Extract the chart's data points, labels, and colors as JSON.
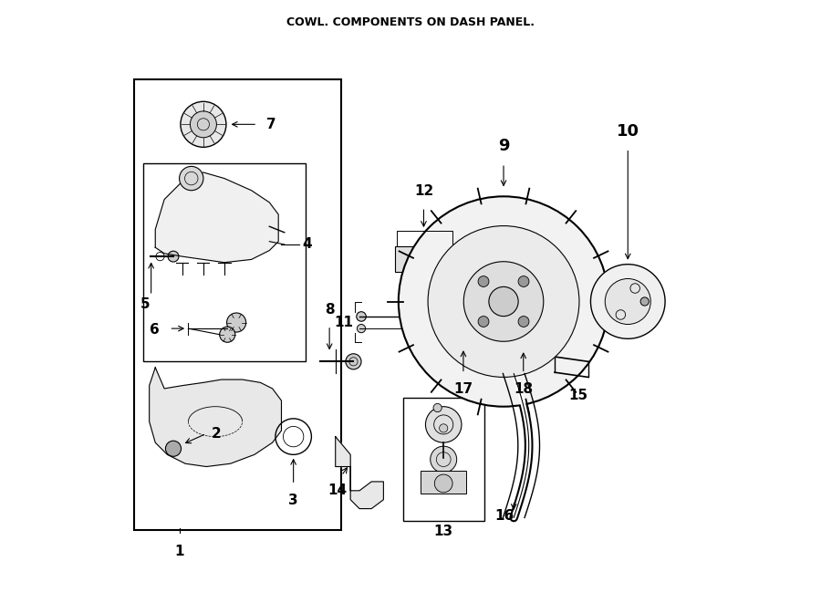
{
  "title": "COWL. COMPONENTS ON DASH PANEL.",
  "bg_color": "#ffffff",
  "line_color": "#000000",
  "fig_width": 9.0,
  "fig_height": 6.61
}
